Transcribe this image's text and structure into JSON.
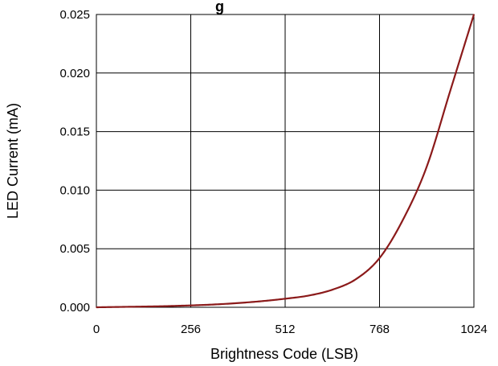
{
  "chart_data": {
    "type": "line",
    "title": "",
    "title_visible_fragment": "g",
    "xlabel": "Brightness Code (LSB)",
    "ylabel": "LED Current (mA)",
    "xlim": [
      0,
      1024
    ],
    "ylim": [
      0,
      0.025
    ],
    "x_ticks": [
      "0",
      "256",
      "512",
      "768",
      "1024"
    ],
    "x_tick_values": [
      0,
      256,
      512,
      768,
      1024
    ],
    "y_ticks": [
      "0.000",
      "0.005",
      "0.010",
      "0.015",
      "0.020",
      "0.025"
    ],
    "y_tick_values": [
      0,
      0.005,
      0.01,
      0.015,
      0.02,
      0.025
    ],
    "grid": true,
    "legend": "none",
    "colors": {
      "line": "#8b1a1a",
      "grid": "#000000",
      "axis": "#000000"
    },
    "series": [
      {
        "x": [
          0,
          64,
          128,
          192,
          256,
          320,
          384,
          448,
          512,
          576,
          640,
          704,
          768,
          832,
          896,
          960,
          1024
        ],
        "values": [
          0.0,
          3e-05,
          6e-05,
          0.0001,
          0.00016,
          0.00024,
          0.00036,
          0.00052,
          0.00073,
          0.001,
          0.0015,
          0.0024,
          0.0042,
          0.0075,
          0.012,
          0.0185,
          0.025
        ]
      }
    ]
  }
}
